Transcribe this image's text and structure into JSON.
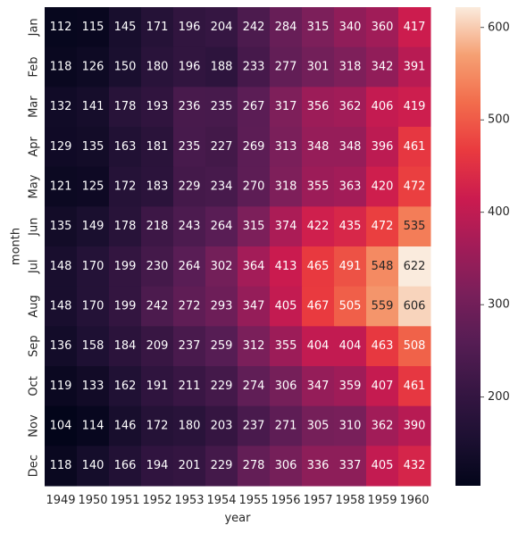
{
  "chart_data": {
    "type": "heatmap",
    "xlabel": "year",
    "ylabel": "month",
    "x": [
      "1949",
      "1950",
      "1951",
      "1952",
      "1953",
      "1954",
      "1955",
      "1956",
      "1957",
      "1958",
      "1959",
      "1960"
    ],
    "y": [
      "Jan",
      "Feb",
      "Mar",
      "Apr",
      "May",
      "Jun",
      "Jul",
      "Aug",
      "Sep",
      "Oct",
      "Nov",
      "Dec"
    ],
    "values": [
      [
        112,
        115,
        145,
        171,
        196,
        204,
        242,
        284,
        315,
        340,
        360,
        417
      ],
      [
        118,
        126,
        150,
        180,
        196,
        188,
        233,
        277,
        301,
        318,
        342,
        391
      ],
      [
        132,
        141,
        178,
        193,
        236,
        235,
        267,
        317,
        356,
        362,
        406,
        419
      ],
      [
        129,
        135,
        163,
        181,
        235,
        227,
        269,
        313,
        348,
        348,
        396,
        461
      ],
      [
        121,
        125,
        172,
        183,
        229,
        234,
        270,
        318,
        355,
        363,
        420,
        472
      ],
      [
        135,
        149,
        178,
        218,
        243,
        264,
        315,
        374,
        422,
        435,
        472,
        535
      ],
      [
        148,
        170,
        199,
        230,
        264,
        302,
        364,
        413,
        465,
        491,
        548,
        622
      ],
      [
        148,
        170,
        199,
        242,
        272,
        293,
        347,
        405,
        467,
        505,
        559,
        606
      ],
      [
        136,
        158,
        184,
        209,
        237,
        259,
        312,
        355,
        404,
        404,
        463,
        508
      ],
      [
        119,
        133,
        162,
        191,
        211,
        229,
        274,
        306,
        347,
        359,
        407,
        461
      ],
      [
        104,
        114,
        146,
        172,
        180,
        203,
        237,
        271,
        305,
        310,
        362,
        390
      ],
      [
        118,
        140,
        166,
        194,
        201,
        229,
        278,
        306,
        336,
        337,
        405,
        432
      ]
    ],
    "vmin": 104,
    "vmax": 622,
    "colormap": "rocket",
    "colorbar_ticks": [
      200,
      300,
      400,
      500,
      600
    ],
    "annotations": true,
    "grid": false
  }
}
